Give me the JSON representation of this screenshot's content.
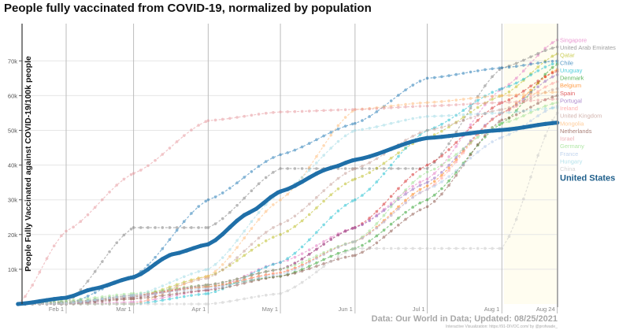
{
  "title": "People fully vaccinated from COVID-19, normalized by population",
  "source": "Data: Our World in Data; Updated: 08/25/2021",
  "credit": "Interactive Visualization: https://91-DIVOC.com/ by @profwade_",
  "chart_data": {
    "type": "line",
    "title": "People fully vaccinated from COVID-19, normalized by population",
    "xlabel": "",
    "ylabel": "People Fully Vaccinated against COVID-19/100k people",
    "ylim": [
      0,
      80000
    ],
    "xlim": [
      "2021-01-12",
      "2021-08-24"
    ],
    "grid": true,
    "x_ticks": [
      {
        "date": "2021-02-01",
        "label": "Feb 1"
      },
      {
        "date": "2021-03-01",
        "label": "Mar 1"
      },
      {
        "date": "2021-04-01",
        "label": "Apr 1"
      },
      {
        "date": "2021-05-01",
        "label": "May 1"
      },
      {
        "date": "2021-06-01",
        "label": "Jun 1"
      },
      {
        "date": "2021-07-01",
        "label": "Jul 1"
      },
      {
        "date": "2021-08-01",
        "label": "Aug 1"
      },
      {
        "date": "2021-08-24",
        "label": "Aug 24"
      }
    ],
    "y_ticks": [
      {
        "value": 10000,
        "label": "10k"
      },
      {
        "value": 20000,
        "label": "20k"
      },
      {
        "value": 30000,
        "label": "30k"
      },
      {
        "value": 40000,
        "label": "40k"
      },
      {
        "value": 50000,
        "label": "50k"
      },
      {
        "value": 60000,
        "label": "60k"
      },
      {
        "value": 70000,
        "label": "70k"
      }
    ],
    "x": [
      "2021-01-12",
      "2021-02-01",
      "2021-03-01",
      "2021-04-01",
      "2021-05-01",
      "2021-06-01",
      "2021-07-01",
      "2021-08-01",
      "2021-08-24"
    ],
    "series": [
      {
        "name": "Singapore",
        "color": "#e377c2",
        "values": [
          0,
          0,
          500,
          4000,
          12000,
          22000,
          36000,
          62000,
          76000
        ]
      },
      {
        "name": "United Arab Emirates",
        "color": "#7f7f7f",
        "values": [
          0,
          500,
          22000,
          22000,
          39000,
          39000,
          39000,
          68000,
          74000
        ]
      },
      {
        "name": "Qatar",
        "color": "#bcbd22",
        "values": [
          0,
          300,
          2000,
          8000,
          20000,
          36000,
          48000,
          60000,
          72000
        ]
      },
      {
        "name": "Uruguay",
        "color": "#17becf",
        "values": [
          0,
          0,
          0,
          3000,
          12000,
          30000,
          50000,
          62000,
          69500
        ]
      },
      {
        "name": "Chile",
        "color": "#1f77b4",
        "values": [
          0,
          0,
          8000,
          30000,
          43000,
          52000,
          65000,
          68000,
          70000
        ]
      },
      {
        "name": "Denmark",
        "color": "#2ca02c",
        "values": [
          0,
          500,
          2500,
          5000,
          8000,
          16000,
          30000,
          52000,
          69000
        ]
      },
      {
        "name": "Belgium",
        "color": "#ff7f0e",
        "values": [
          0,
          300,
          2500,
          5000,
          9000,
          18000,
          34000,
          55000,
          67500
        ]
      },
      {
        "name": "Spain",
        "color": "#d62728",
        "values": [
          0,
          200,
          2500,
          5500,
          10000,
          22000,
          40000,
          58000,
          67000
        ]
      },
      {
        "name": "Portugal",
        "color": "#9467bd",
        "values": [
          0,
          100,
          2000,
          5500,
          10000,
          22000,
          35000,
          55000,
          66000
        ]
      },
      {
        "name": "Ireland",
        "color": "#ff9896",
        "values": [
          0,
          200,
          2500,
          5000,
          9000,
          18000,
          33000,
          55000,
          64000
        ]
      },
      {
        "name": "United Kingdom",
        "color": "#c49c94",
        "values": [
          0,
          800,
          1500,
          7500,
          23000,
          39000,
          50000,
          56000,
          62000
        ]
      },
      {
        "name": "Mongolia",
        "color": "#ffbb78",
        "values": [
          0,
          0,
          0,
          8000,
          30000,
          56000,
          58000,
          60000,
          61000
        ]
      },
      {
        "name": "Netherlands",
        "color": "#8c564b",
        "values": [
          0,
          0,
          1500,
          4000,
          8000,
          14000,
          28000,
          53000,
          60000
        ]
      },
      {
        "name": "Israel",
        "color": "#e7969c",
        "values": [
          0,
          21000,
          37600,
          52800,
          55300,
          56000,
          57000,
          58000,
          59000
        ]
      },
      {
        "name": "Germany",
        "color": "#98df8a",
        "values": [
          0,
          1000,
          3000,
          5500,
          10000,
          18000,
          38000,
          52000,
          58000
        ]
      },
      {
        "name": "France",
        "color": "#aec7e8",
        "values": [
          0,
          200,
          2500,
          4500,
          8500,
          18000,
          33000,
          48000,
          57000
        ]
      },
      {
        "name": "Hungary",
        "color": "#9edae5",
        "values": [
          0,
          300,
          2500,
          10000,
          32000,
          50000,
          54000,
          55000,
          56500
        ]
      },
      {
        "name": "China",
        "color": "#c7c7c7",
        "values": [
          0,
          0,
          0,
          0,
          3000,
          16000,
          16000,
          16000,
          55000
        ]
      }
    ],
    "highlight": {
      "name": "United States",
      "color": "#1f6fa8",
      "x": [
        "2021-01-12",
        "2021-02-01",
        "2021-02-12",
        "2021-03-01",
        "2021-03-17",
        "2021-04-01",
        "2021-04-18",
        "2021-05-01",
        "2021-05-22",
        "2021-06-01",
        "2021-07-01",
        "2021-08-01",
        "2021-08-24"
      ],
      "values": [
        0,
        1800,
        4300,
        7700,
        14300,
        17200,
        26300,
        32400,
        39200,
        41500,
        47800,
        50100,
        52200
      ]
    }
  }
}
